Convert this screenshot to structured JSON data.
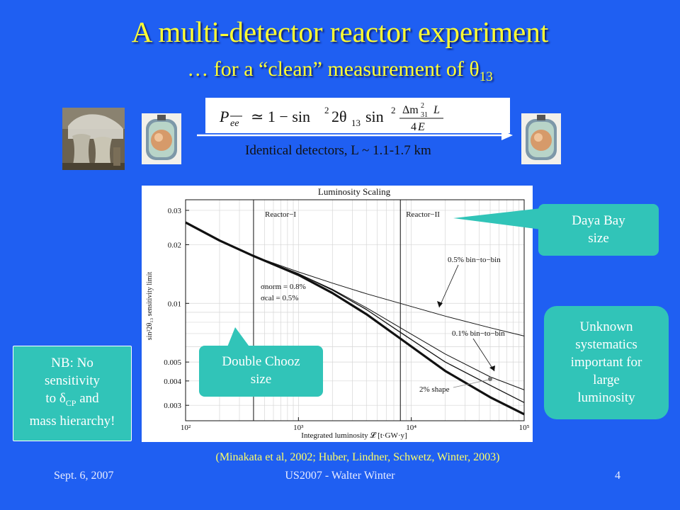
{
  "slide": {
    "title": "A multi-detector reactor experiment",
    "subtitle_prefix": "… for a “clean” measurement of θ",
    "subtitle_sub": "13",
    "caption": "Identical detectors, L ~ 1.1-1.7 km",
    "reference": "(Minakata et al, 2002; Huber, Lindner, Schwetz, Winter, 2003)"
  },
  "callouts": {
    "daya_line1": "Daya Bay",
    "daya_line2": "size",
    "dc_line1": "Double Chooz",
    "dc_line2": "size",
    "unknown": [
      "Unknown",
      "systematics",
      "important for",
      "large",
      "luminosity"
    ],
    "nb_line1": "NB: No",
    "nb_line2": "sensitivity",
    "nb_line3_pre": "to δ",
    "nb_line3_sub": "CP",
    "nb_line3_post": " and",
    "nb_line4": "mass hierarchy!"
  },
  "footer": {
    "date": "Sept. 6, 2007",
    "center": "US2007 - Walter Winter",
    "page": "4"
  },
  "icons": {
    "photo": "cooling-towers-photo",
    "detector": "detector-icon",
    "arrow": "arrow-right-icon"
  },
  "colors": {
    "background": "#1f5ff2",
    "title": "#ffff33",
    "callout": "#31c4b8"
  },
  "chart_data": {
    "type": "line",
    "title": "Luminosity Scaling",
    "xlabel": "Integrated luminosity 𝓛 [t·GW·y]",
    "ylabel": "sin²2θ₁₃ sensitivity limit",
    "xscale": "log",
    "yscale": "log",
    "xlim": [
      100,
      100000
    ],
    "ylim": [
      0.0025,
      0.034
    ],
    "grid": true,
    "x_ticks": [
      "10²",
      "10³",
      "10⁴",
      "10⁵"
    ],
    "y_ticks": [
      "0.03",
      "0.02",
      "0.01",
      "0.005",
      "0.004",
      "0.003"
    ],
    "regions": [
      {
        "label": "Reactor−I",
        "x": 400
      },
      {
        "label": "Reactor−II",
        "x": 8000
      }
    ],
    "annotations": {
      "sigma_norm": "σnorm = 0.8%",
      "sigma_cal": "σcal = 0.5%",
      "bin05": "0.5% bin−to−bin",
      "bin01": "0.1% bin−to−bin",
      "shape2": "2% shape"
    },
    "series": [
      {
        "x": [
          100,
          200,
          400,
          1000,
          2000,
          4000,
          8000,
          20000,
          50000,
          100000
        ],
        "values": [
          0.026,
          0.021,
          0.0175,
          0.0145,
          0.0127,
          0.0112,
          0.01,
          0.0086,
          0.0075,
          0.0068
        ]
      },
      {
        "x": [
          100,
          200,
          400,
          1000,
          2000,
          4000,
          8000,
          20000,
          50000,
          100000
        ],
        "values": [
          0.026,
          0.021,
          0.0175,
          0.0142,
          0.0118,
          0.0095,
          0.0075,
          0.0055,
          0.0042,
          0.0036
        ]
      },
      {
        "x": [
          100,
          200,
          400,
          1000,
          2000,
          4000,
          8000,
          20000,
          50000,
          100000
        ],
        "values": [
          0.026,
          0.021,
          0.0175,
          0.0142,
          0.0117,
          0.0093,
          0.0071,
          0.005,
          0.0038,
          0.0031
        ]
      },
      {
        "x": [
          100,
          200,
          400,
          1000,
          2000,
          4000,
          8000,
          20000,
          50000,
          100000
        ],
        "values": [
          0.026,
          0.021,
          0.0175,
          0.014,
          0.0113,
          0.0088,
          0.0066,
          0.0045,
          0.0033,
          0.0027
        ]
      }
    ]
  }
}
